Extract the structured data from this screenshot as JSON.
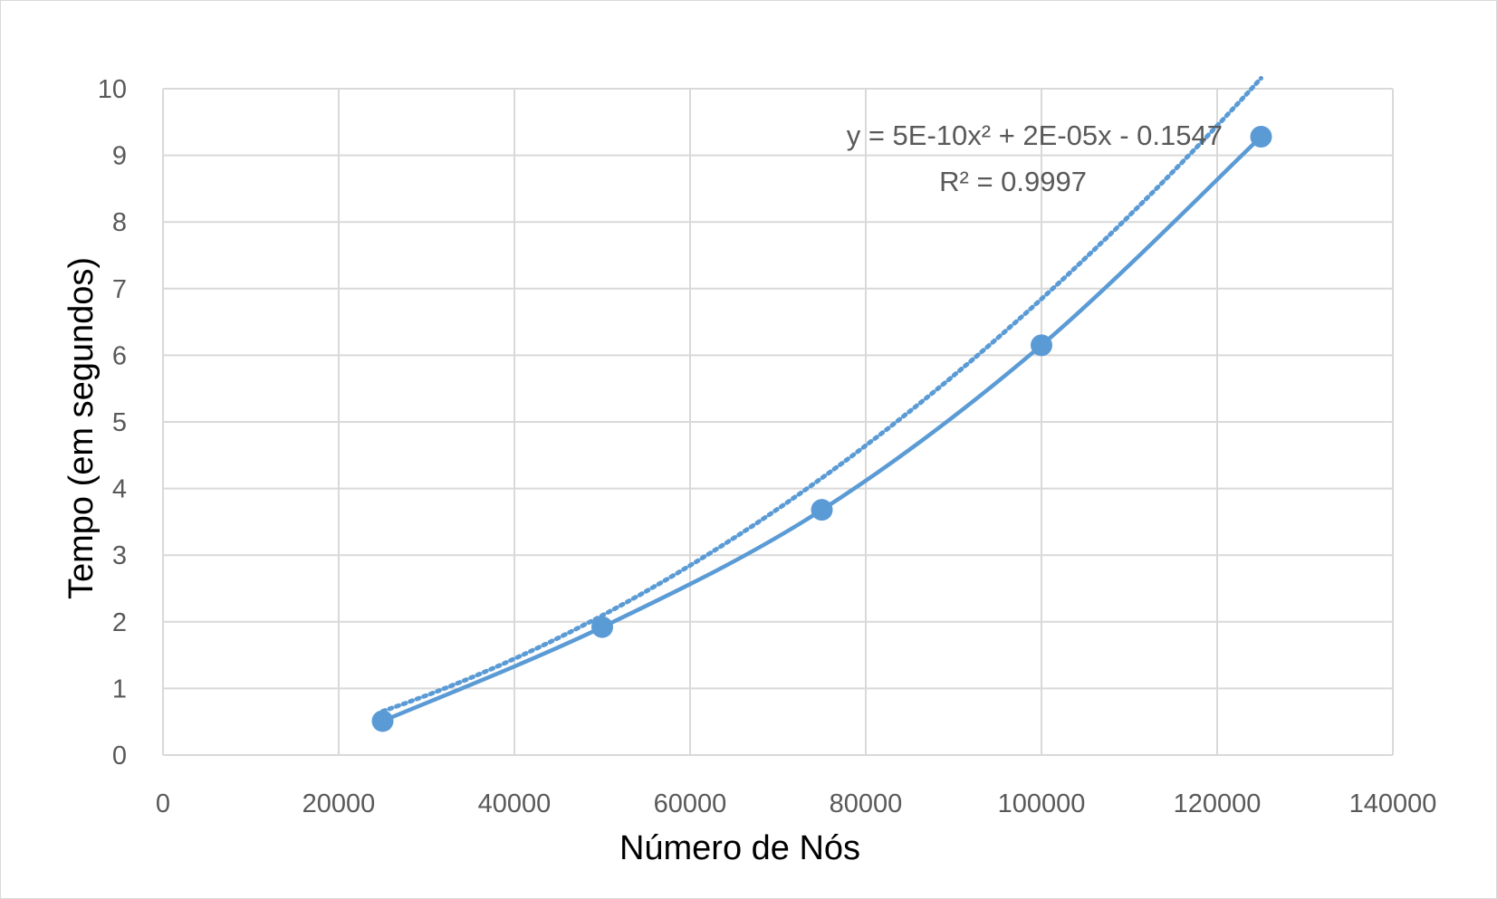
{
  "chart_data": {
    "type": "scatter",
    "xlabel": "Número de Nós",
    "ylabel": "Tempo (em segundos)",
    "xlim": [
      0,
      140000
    ],
    "ylim": [
      0,
      10
    ],
    "x_ticks": [
      "0",
      "20000",
      "40000",
      "60000",
      "80000",
      "100000",
      "120000",
      "140000"
    ],
    "y_ticks": [
      "0",
      "1",
      "2",
      "3",
      "4",
      "5",
      "6",
      "7",
      "8",
      "9",
      "10"
    ],
    "grid": true,
    "series": [
      {
        "x": [
          25000,
          50000,
          75000,
          100000,
          125000
        ],
        "y": [
          0.51,
          1.92,
          3.68,
          6.15,
          9.28
        ],
        "color": "#5b9bd5",
        "smooth_line": true
      }
    ],
    "trendline": {
      "type": "polynomial-2",
      "style": "dotted",
      "coefficients": {
        "a": 5e-10,
        "b": 2e-05,
        "c": -0.1547
      },
      "equation_text": "y = 5E-10x² + 2E-05x - 0.1547",
      "r2_text": "R² = 0.9997"
    }
  }
}
